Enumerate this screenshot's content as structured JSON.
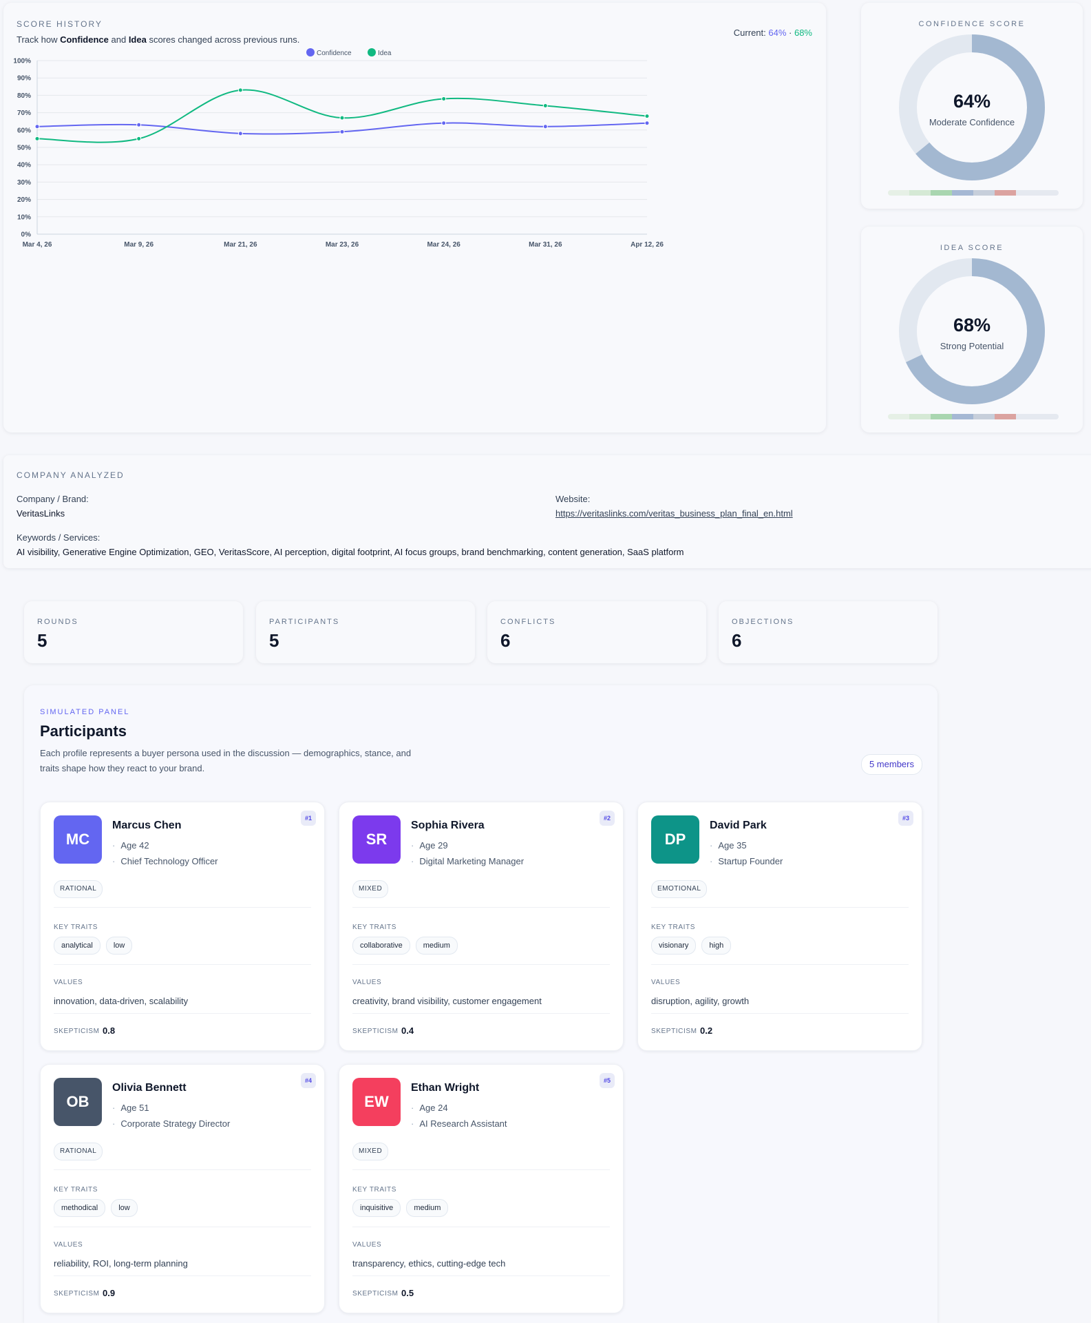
{
  "score_history": {
    "eyebrow": "SCORE HISTORY",
    "subtitle_pre": "Track how ",
    "subtitle_conf": "Confidence",
    "subtitle_mid": " and ",
    "subtitle_idea": "Idea",
    "subtitle_post": " scores changed across previous runs.",
    "current_label": "Current: ",
    "current_conf": "64%",
    "current_sep": " · ",
    "current_idea": "68%"
  },
  "chart_data": {
    "type": "line",
    "categories": [
      "Mar 4, 26",
      "Mar 9, 26",
      "Mar 21, 26",
      "Mar 23, 26",
      "Mar 24, 26",
      "Mar 31, 26",
      "Apr 12, 26"
    ],
    "series": [
      {
        "name": "Confidence",
        "values": [
          62,
          63,
          58,
          59,
          64,
          62,
          64
        ],
        "color": "#6366f1"
      },
      {
        "name": "Idea",
        "values": [
          55,
          55,
          83,
          67,
          78,
          74,
          68
        ],
        "color": "#10b981"
      }
    ],
    "yticks": [
      "0%",
      "10%",
      "20%",
      "30%",
      "40%",
      "50%",
      "60%",
      "70%",
      "80%",
      "90%",
      "100%"
    ],
    "ylim": [
      0,
      100
    ],
    "legend": "top-center",
    "grid": true
  },
  "confidence": {
    "eyebrow": "CONFIDENCE SCORE",
    "value": 64,
    "pct": "64%",
    "label": "Moderate Confidence"
  },
  "idea": {
    "eyebrow": "IDEA SCORE",
    "value": 68,
    "pct": "68%",
    "label": "Strong Potential"
  },
  "colors": {
    "gauge_fill": "#a3b8d1",
    "gauge_track": "#e2e8f0",
    "scale": [
      "#e6f0e6",
      "#d5e9d5",
      "#a9d6b0",
      "#a5b8d4",
      "#c7cfdb",
      "#dba3a0",
      "#e5e9f0",
      "#e5e9f0"
    ]
  },
  "company": {
    "eyebrow": "COMPANY ANALYZED",
    "brand_label": "Company / Brand:",
    "brand": "VeritasLinks",
    "website_label": "Website:",
    "website": "https://veritaslinks.com/veritas_business_plan_final_en.html",
    "keywords_label": "Keywords / Services:",
    "keywords": "AI visibility, Generative Engine Optimization, GEO, VeritasScore, AI perception, digital footprint, AI focus groups, brand benchmarking, content generation, SaaS platform"
  },
  "stats": [
    {
      "label": "ROUNDS",
      "value": "5"
    },
    {
      "label": "PARTICIPANTS",
      "value": "5"
    },
    {
      "label": "CONFLICTS",
      "value": "6"
    },
    {
      "label": "OBJECTIONS",
      "value": "6"
    }
  ],
  "panel": {
    "eyebrow": "SIMULATED PANEL",
    "title": "Participants",
    "description": "Each profile represents a buyer persona used in the discussion — demographics, stance, and traits shape how they react to your brand.",
    "members": "5 members",
    "key_traits_label": "KEY TRAITS",
    "values_label": "VALUES",
    "skepticism_label": "SKEPTICISM"
  },
  "participants": [
    {
      "rank": "#1",
      "initials": "MC",
      "color": "#6366f1",
      "name": "Marcus Chen",
      "age": "Age 42",
      "role": "Chief Technology Officer",
      "stance": "RATIONAL",
      "traits": [
        "analytical",
        "low"
      ],
      "values": "innovation, data-driven, scalability",
      "skepticism": "0.8"
    },
    {
      "rank": "#2",
      "initials": "SR",
      "color": "#7c3aed",
      "name": "Sophia Rivera",
      "age": "Age 29",
      "role": "Digital Marketing Manager",
      "stance": "MIXED",
      "traits": [
        "collaborative",
        "medium"
      ],
      "values": "creativity, brand visibility, customer engagement",
      "skepticism": "0.4"
    },
    {
      "rank": "#3",
      "initials": "DP",
      "color": "#0d9488",
      "name": "David Park",
      "age": "Age 35",
      "role": "Startup Founder",
      "stance": "EMOTIONAL",
      "traits": [
        "visionary",
        "high"
      ],
      "values": "disruption, agility, growth",
      "skepticism": "0.2"
    },
    {
      "rank": "#4",
      "initials": "OB",
      "color": "#475569",
      "name": "Olivia Bennett",
      "age": "Age 51",
      "role": "Corporate Strategy Director",
      "stance": "RATIONAL",
      "traits": [
        "methodical",
        "low"
      ],
      "values": "reliability, ROI, long-term planning",
      "skepticism": "0.9"
    },
    {
      "rank": "#5",
      "initials": "EW",
      "color": "#f43f5e",
      "name": "Ethan Wright",
      "age": "Age 24",
      "role": "AI Research Assistant",
      "stance": "MIXED",
      "traits": [
        "inquisitive",
        "medium"
      ],
      "values": "transparency, ethics, cutting-edge tech",
      "skepticism": "0.5"
    }
  ]
}
